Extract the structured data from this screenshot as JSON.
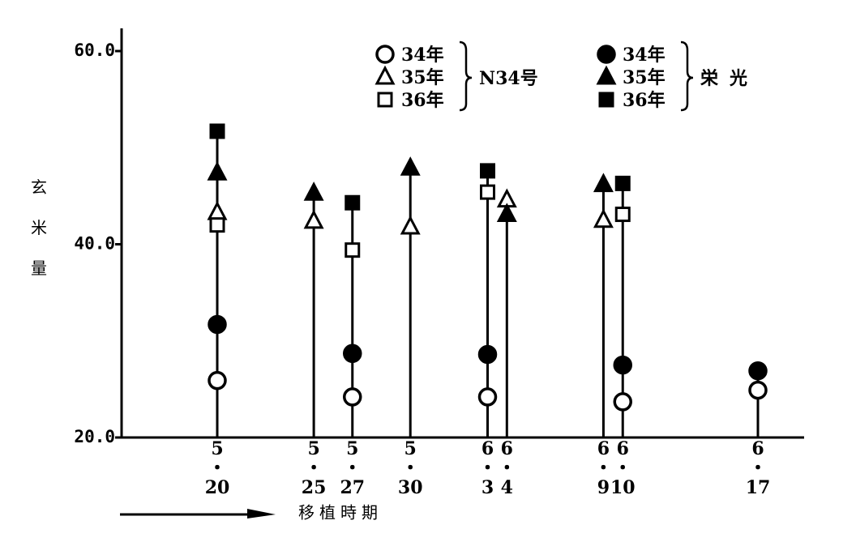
{
  "chart_data": {
    "type": "dot-stem",
    "y_label": "玄米量",
    "x_label": "移植時期",
    "categories": [
      "5・20",
      "5・25",
      "5・27",
      "5・30",
      "6・3",
      "6・4",
      "6・9",
      "6・10",
      "6・17"
    ],
    "ylim": [
      20,
      62.35
    ],
    "yticks": [
      {
        "value": 20,
        "label": "20.0"
      },
      {
        "value": 40,
        "label": "40.0"
      },
      {
        "value": 60,
        "label": "60.0"
      }
    ],
    "series": [
      {
        "name": "34年",
        "group": "N34号",
        "marker": "circle",
        "color": "#000",
        "fill": "#fff",
        "values": [
          25.9,
          null,
          24.2,
          null,
          24.2,
          null,
          null,
          23.7,
          24.9
        ]
      },
      {
        "name": "35年",
        "group": "N34号",
        "marker": "triangle",
        "color": "#000",
        "fill": "#fff",
        "values": [
          43.3,
          42.4,
          null,
          41.8,
          null,
          44.6,
          42.5,
          null,
          null
        ]
      },
      {
        "name": "36年",
        "group": "N34号",
        "marker": "square",
        "color": "#000",
        "fill": "#fff",
        "values": [
          42.0,
          null,
          39.4,
          null,
          45.4,
          null,
          null,
          43.1,
          null
        ]
      },
      {
        "name": "34年",
        "group": "栄光",
        "marker": "circle",
        "color": "#000",
        "fill": "#000",
        "values": [
          31.7,
          null,
          28.7,
          null,
          28.6,
          null,
          null,
          27.5,
          26.9
        ]
      },
      {
        "name": "35年",
        "group": "栄光",
        "marker": "triangle",
        "color": "#000",
        "fill": "#000",
        "values": [
          47.4,
          45.3,
          null,
          47.9,
          null,
          43.1,
          46.2,
          null,
          null
        ]
      },
      {
        "name": "36年",
        "group": "栄光",
        "marker": "square",
        "color": "#000",
        "fill": "#000",
        "values": [
          51.7,
          null,
          44.3,
          null,
          47.6,
          null,
          null,
          46.3,
          null
        ]
      }
    ]
  }
}
